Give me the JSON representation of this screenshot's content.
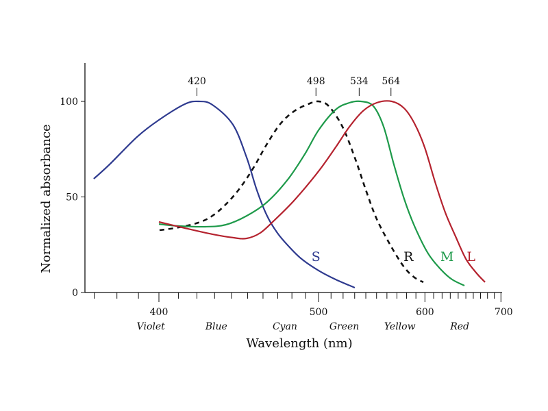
{
  "chart_data": {
    "type": "line",
    "title": "",
    "xlabel": "Wavelength (nm)",
    "ylabel": "Normalized absorbance",
    "x_scale": "reciprocal",
    "xlim": [
      366,
      700
    ],
    "ylim": [
      0,
      120
    ],
    "x_ticks": [
      400,
      500,
      600,
      700
    ],
    "x_minor_step": 10,
    "y_ticks": [
      0,
      50,
      100
    ],
    "grid": false,
    "color_bands": [
      {
        "text": "Violet",
        "x": 396
      },
      {
        "text": "Blue",
        "x": 431
      },
      {
        "text": "Cyan",
        "x": 475
      },
      {
        "text": "Green",
        "x": 521
      },
      {
        "text": "Yellow",
        "x": 573
      },
      {
        "text": "Red",
        "x": 642
      }
    ],
    "peak_labels": [
      {
        "text": "420",
        "x": 420
      },
      {
        "text": "498",
        "x": 498
      },
      {
        "text": "534",
        "x": 534
      },
      {
        "text": "564",
        "x": 564
      }
    ],
    "series": [
      {
        "name": "S",
        "color": "#2e3a8f",
        "dash": false,
        "label_at": [
          498,
          19
        ],
        "x": [
          369.8,
          376.7,
          389.3,
          400,
          413.5,
          421,
          428.7,
          440.9,
          449.4,
          456,
          462.7,
          469.7,
          477,
          487,
          500,
          513.8,
          530.1
        ],
        "y": [
          59.5,
          67,
          81.4,
          90.3,
          98.6,
          100,
          98.2,
          87.8,
          70.6,
          53.4,
          40.1,
          31.2,
          24.7,
          17.6,
          11.5,
          6.8,
          2.5
        ]
      },
      {
        "name": "R",
        "color": "#111111",
        "dash": true,
        "label_at": [
          582,
          19
        ],
        "x": [
          400.3,
          409.9,
          421,
          428.7,
          436.7,
          445.1,
          453.7,
          462.7,
          472.1,
          481.9,
          492.1,
          500,
          508.2,
          519.5,
          530.1,
          540.6,
          550.2,
          563.5,
          577.4,
          588.4,
          598.2
        ],
        "y": [
          32.6,
          34,
          36.6,
          40.1,
          46.2,
          54.5,
          65.2,
          77.8,
          88.5,
          95,
          98.6,
          100,
          97.5,
          86.7,
          70.6,
          52.7,
          38.4,
          24.7,
          13.3,
          7.9,
          5.4
        ]
      },
      {
        "name": "M",
        "color": "#1e9a4a",
        "dash": false,
        "label_at": [
          626,
          19
        ],
        "x": [
          400,
          409.9,
          424.8,
          436.7,
          449.4,
          462.7,
          477,
          489.5,
          500,
          513.8,
          525.4,
          535.6,
          547,
          556.8,
          566.9,
          577.4,
          588.4,
          603.6,
          619.7,
          632.3,
          648.1
        ],
        "y": [
          35.8,
          34.8,
          34.4,
          35.5,
          40.1,
          47.3,
          59.1,
          72.4,
          84.9,
          95.7,
          99.3,
          100,
          97.5,
          86.7,
          67,
          49.1,
          34.8,
          20.4,
          11.5,
          6.8,
          3.6
        ]
      },
      {
        "name": "L",
        "color": "#b5232f",
        "dash": false,
        "label_at": [
          657,
          19
        ],
        "x": [
          400,
          413.5,
          428.7,
          440.9,
          449.4,
          458.2,
          467.4,
          481.9,
          500,
          513.8,
          525.4,
          537.5,
          550.2,
          564.8,
          577.4,
          588.4,
          599.7,
          611.5,
          623.8,
          636.6,
          650,
          663.8,
          676.4
        ],
        "y": [
          36.9,
          33.7,
          30.5,
          28.7,
          28.3,
          31.2,
          37.6,
          48.4,
          63.4,
          76,
          86.7,
          95,
          99.3,
          100,
          96.4,
          88.5,
          76,
          58.1,
          41.9,
          29.4,
          17.6,
          10.4,
          5.4
        ]
      }
    ]
  }
}
